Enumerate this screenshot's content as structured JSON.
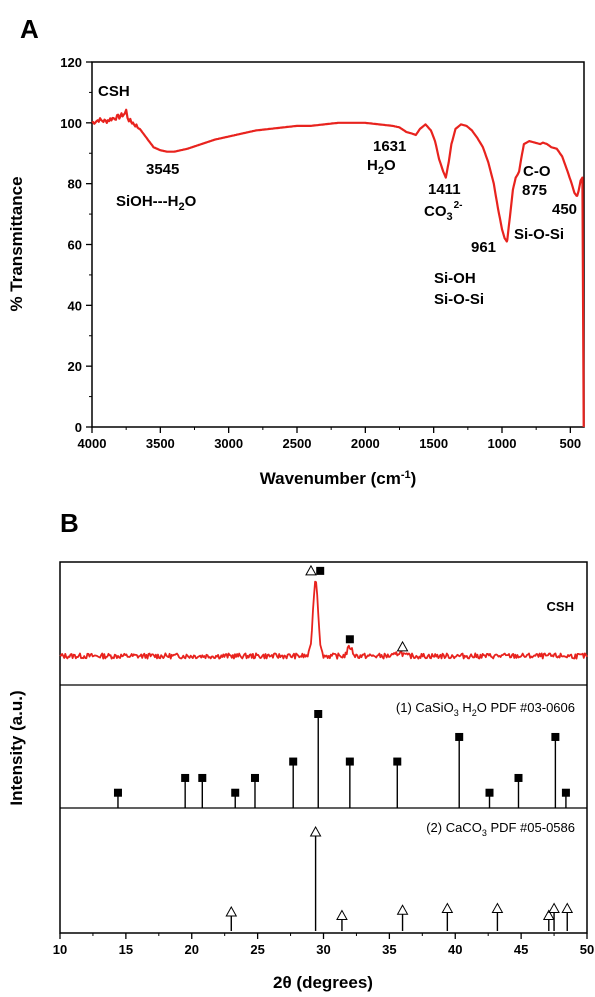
{
  "colors": {
    "spectrum": "#e8231e",
    "axis": "#000000"
  },
  "chart_data": [
    {
      "panel": "A",
      "type": "line",
      "title": "",
      "xlabel": "Wavenumber (cm",
      "xlabel_sup": "-1",
      "xlabel_end": ")",
      "ylabel": "% Transmittance",
      "xlim": [
        4000,
        400
      ],
      "ylim": [
        0,
        120
      ],
      "x_ticks": [
        "4000",
        "3500",
        "3000",
        "2500",
        "2000",
        "1500",
        "1000",
        "500"
      ],
      "y_ticks": [
        "0",
        "20",
        "40",
        "60",
        "80",
        "100",
        "120"
      ],
      "series": [
        {
          "name": "CSH",
          "x": [
            4000,
            3950,
            3900,
            3850,
            3800,
            3760,
            3750,
            3740,
            3730,
            3720,
            3700,
            3650,
            3600,
            3550,
            3500,
            3450,
            3400,
            3300,
            3200,
            3100,
            3000,
            2900,
            2800,
            2700,
            2600,
            2500,
            2400,
            2300,
            2200,
            2100,
            2000,
            1900,
            1800,
            1750,
            1700,
            1660,
            1631,
            1600,
            1560,
            1520,
            1490,
            1460,
            1430,
            1411,
            1390,
            1370,
            1340,
            1300,
            1260,
            1220,
            1180,
            1140,
            1100,
            1060,
            1030,
            1000,
            980,
            965,
            961,
            950,
            935,
            920,
            900,
            885,
            875,
            860,
            840,
            800,
            760,
            720,
            700,
            670,
            640,
            600,
            560,
            520,
            490,
            470,
            455,
            450,
            440,
            425,
            412,
            402
          ],
          "y": [
            100,
            101,
            100.5,
            101.5,
            102,
            103,
            104,
            102,
            101,
            100.5,
            100,
            98,
            95,
            92,
            91,
            90.5,
            90.5,
            91.5,
            93,
            94.5,
            95.5,
            96.5,
            97.5,
            98,
            98.5,
            99,
            99,
            99.5,
            100,
            100,
            100,
            99.5,
            99,
            98.5,
            97,
            96.5,
            96,
            98,
            99.5,
            97.5,
            94,
            88,
            84,
            82,
            87,
            93,
            98,
            99.5,
            99,
            97.5,
            95,
            92,
            87,
            80,
            72,
            65,
            62,
            61,
            61.5,
            66,
            72,
            78,
            82,
            83,
            84,
            88,
            93,
            94,
            93.5,
            93,
            93.5,
            93,
            92,
            91.5,
            89,
            84,
            80,
            77,
            76,
            76,
            77.5,
            81,
            82,
            0
          ]
        }
      ],
      "annotations": [
        {
          "id": "csh",
          "text": "CSH"
        },
        {
          "id": "w3545",
          "text": "3545"
        },
        {
          "id": "siohh2o",
          "text": "SiOH---H",
          "sub": "2",
          "tail": "O"
        },
        {
          "id": "w1631",
          "text": "1631"
        },
        {
          "id": "h2o",
          "text": "H",
          "sub": "2",
          "tail": "O"
        },
        {
          "id": "w1411",
          "text": "1411"
        },
        {
          "id": "co3",
          "text": "CO",
          "sub": "3",
          "sup": "2-"
        },
        {
          "id": "w961",
          "text": "961"
        },
        {
          "id": "sioh",
          "text": "Si-OH"
        },
        {
          "id": "siosi1",
          "text": "Si-O-Si"
        },
        {
          "id": "co",
          "text": "C-O"
        },
        {
          "id": "w875",
          "text": "875"
        },
        {
          "id": "w450",
          "text": "450"
        },
        {
          "id": "siosi2",
          "text": "Si-O-Si"
        }
      ]
    },
    {
      "panel": "B",
      "type": "line",
      "title": "",
      "xlabel": "2θ (degrees)",
      "ylabel": "Intensity (a.u.)",
      "xlim": [
        10,
        50
      ],
      "x_ticks": [
        "10",
        "15",
        "20",
        "25",
        "30",
        "35",
        "40",
        "45",
        "50"
      ],
      "subpanels": [
        {
          "label": "CSH",
          "kind": "pattern",
          "peaks": [
            {
              "x": 29.4,
              "h": 1.0,
              "w": 0.55
            },
            {
              "x": 32.0,
              "h": 0.12,
              "w": 0.5
            },
            {
              "x": 35.8,
              "h": 0.05,
              "w": 0.6
            }
          ],
          "baseline_noise": 0.035,
          "markers": [
            {
              "x": 29.4,
              "h": 1.12,
              "symbol": "triangle",
              "dx": -0.35
            },
            {
              "x": 29.4,
              "h": 1.12,
              "symbol": "square",
              "dx": 0.35
            },
            {
              "x": 32.0,
              "h": 0.22,
              "symbol": "square",
              "dx": 0
            },
            {
              "x": 36.0,
              "h": 0.12,
              "symbol": "triangle",
              "dx": 0
            }
          ]
        },
        {
          "label": "(1) CaSiO",
          "label_sub": "3",
          "label_tail": " H",
          "label_sub2": "2",
          "label_end": "O PDF #03-0606",
          "kind": "reference",
          "symbol": "square",
          "lines": [
            {
              "x": 14.4,
              "h": 0.04
            },
            {
              "x": 19.5,
              "h": 0.22
            },
            {
              "x": 20.8,
              "h": 0.22
            },
            {
              "x": 23.3,
              "h": 0.04
            },
            {
              "x": 24.8,
              "h": 0.22
            },
            {
              "x": 27.7,
              "h": 0.42
            },
            {
              "x": 29.6,
              "h": 1.0
            },
            {
              "x": 32.0,
              "h": 0.42
            },
            {
              "x": 35.6,
              "h": 0.42
            },
            {
              "x": 40.3,
              "h": 0.72
            },
            {
              "x": 42.6,
              "h": 0.04
            },
            {
              "x": 44.8,
              "h": 0.22
            },
            {
              "x": 47.6,
              "h": 0.72
            },
            {
              "x": 48.4,
              "h": 0.04
            }
          ]
        },
        {
          "label": "(2) CaCO",
          "label_sub": "3",
          "label_end": " PDF #05-0586",
          "kind": "reference",
          "symbol": "triangle",
          "lines": [
            {
              "x": 23.0,
              "h": 0.08
            },
            {
              "x": 29.4,
              "h": 1.0
            },
            {
              "x": 31.4,
              "h": 0.04
            },
            {
              "x": 36.0,
              "h": 0.1
            },
            {
              "x": 39.4,
              "h": 0.12
            },
            {
              "x": 43.2,
              "h": 0.12
            },
            {
              "x": 47.1,
              "h": 0.04
            },
            {
              "x": 47.5,
              "h": 0.12
            },
            {
              "x": 48.5,
              "h": 0.12
            }
          ]
        }
      ]
    }
  ],
  "panel_letters": [
    "A",
    "B"
  ]
}
